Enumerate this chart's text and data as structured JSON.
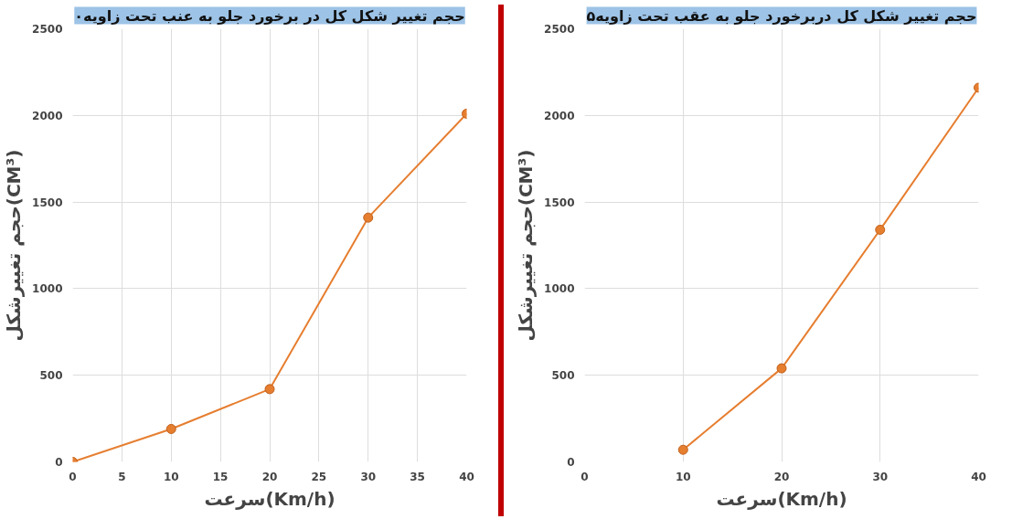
{
  "chart_data": [
    {
      "type": "line",
      "title": "حجم تغییر شکل کل در برخورد جلو به عنب تحت زاویه۰",
      "xlabel": "سرعت(Km/h)",
      "ylabel": "حجم تغییرشکل(CM³)",
      "x": [
        0,
        10,
        20,
        30,
        40
      ],
      "series": [
        {
          "color": "#e67e30",
          "values": [
            0,
            190,
            420,
            1410,
            2010
          ]
        }
      ],
      "xlim": [
        0,
        40
      ],
      "xticks": [
        0,
        5,
        10,
        15,
        20,
        25,
        30,
        35,
        40
      ],
      "ylim": [
        0,
        2500
      ],
      "yticks": [
        0,
        500,
        1000,
        1500,
        2000,
        2500
      ],
      "grid": true,
      "marker": "circle",
      "line_style": "solid"
    },
    {
      "type": "line",
      "title": "حجم تغییر شکل کل دربرخورد جلو به عقب تحت زاویه۵",
      "xlabel": "سرعت(Km/h)",
      "ylabel": "حجم تغییرشکل(CM³)",
      "x": [
        10,
        20,
        30,
        40
      ],
      "series": [
        {
          "color": "#e67e30",
          "values": [
            70,
            540,
            1340,
            2160
          ]
        }
      ],
      "xlim": [
        0,
        40
      ],
      "xticks": [
        0,
        10,
        20,
        30,
        40
      ],
      "ylim": [
        0,
        2500
      ],
      "yticks": [
        0,
        500,
        1000,
        1500,
        2000,
        2500
      ],
      "grid": true,
      "marker": "circle",
      "line_style": "solid"
    }
  ]
}
